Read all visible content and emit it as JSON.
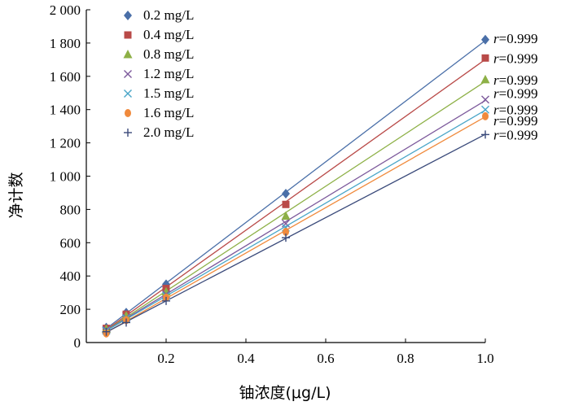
{
  "chart_data": {
    "type": "scatter",
    "title": "",
    "xlabel": "铀浓度(μg/L)",
    "ylabel": "净计数",
    "xlim": [
      0,
      1.0
    ],
    "ylim": [
      0,
      2000
    ],
    "x_ticks": [
      0.2,
      0.4,
      0.6,
      0.8,
      1.0
    ],
    "x_tick_labels": [
      "0.2",
      "0.4",
      "0.6",
      "0.8",
      "1.0"
    ],
    "y_ticks": [
      0,
      200,
      400,
      600,
      800,
      1000,
      1200,
      1400,
      1600,
      1800,
      2000
    ],
    "y_tick_labels": [
      "0",
      "200",
      "400",
      "600",
      "800",
      "1 000",
      "1 200",
      "1 400",
      "1 600",
      "1 800",
      "2 000"
    ],
    "grid": false,
    "legend_position": "top-left",
    "fit_lines": true,
    "x": [
      0.05,
      0.1,
      0.2,
      0.5,
      1.0
    ],
    "series": [
      {
        "name": "0.2 mg/L",
        "marker": "diamond",
        "color": "#4a6fa8",
        "values": [
          90,
          180,
          350,
          895,
          1820
        ],
        "r_label": "r=0.999"
      },
      {
        "name": "0.4 mg/L",
        "marker": "square",
        "color": "#b94a48",
        "values": [
          85,
          170,
          325,
          830,
          1710
        ],
        "r_label": "r=0.999"
      },
      {
        "name": "0.8 mg/L",
        "marker": "triangle",
        "color": "#8db046",
        "values": [
          80,
          160,
          305,
          760,
          1580
        ],
        "r_label": "r=0.999"
      },
      {
        "name": "1.2 mg/L",
        "marker": "x",
        "color": "#7d5a9c",
        "values": [
          75,
          150,
          290,
          715,
          1460
        ],
        "r_label": "r=0.999"
      },
      {
        "name": "1.5 mg/L",
        "marker": "x",
        "color": "#4aa6c8",
        "values": [
          70,
          145,
          280,
          690,
          1400
        ],
        "r_label": "r=0.999"
      },
      {
        "name": "1.6 mg/L",
        "marker": "circle",
        "color": "#f08a3c",
        "values": [
          55,
          135,
          270,
          665,
          1360
        ],
        "r_label": "r=0.999"
      },
      {
        "name": "2.0 mg/L",
        "marker": "plus",
        "color": "#3a4a7a",
        "values": [
          65,
          120,
          250,
          630,
          1250
        ],
        "r_label": "r=0.999"
      }
    ]
  }
}
